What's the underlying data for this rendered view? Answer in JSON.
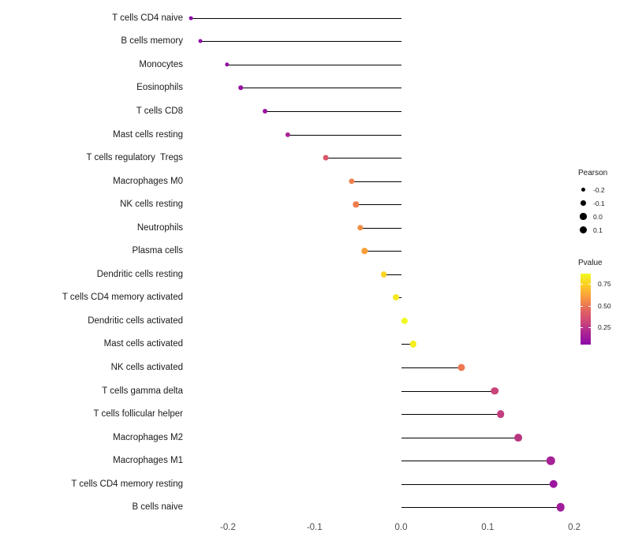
{
  "chart_data": {
    "type": "lollipop",
    "title": "",
    "xlabel": "",
    "ylabel": "",
    "xlim": [
      -0.2446,
      0.24
    ],
    "x_ticks": [
      -0.2,
      -0.1,
      0.0,
      0.1,
      0.2
    ],
    "x_tick_labels": [
      "-0.2",
      "-0.1",
      "0.0",
      "0.1",
      "0.2"
    ],
    "grid": "off",
    "items": [
      {
        "label": "T cells CD4 naive",
        "pearson": -0.243,
        "color": "#8b0aa5"
      },
      {
        "label": "B cells memory",
        "pearson": -0.232,
        "color": "#8e0ca4"
      },
      {
        "label": "Monocytes",
        "pearson": -0.201,
        "color": "#9312a1"
      },
      {
        "label": "Eosinophils",
        "pearson": -0.185,
        "color": "#97139f"
      },
      {
        "label": "T cells CD8",
        "pearson": -0.157,
        "color": "#9c179e"
      },
      {
        "label": "Mast cells resting",
        "pearson": -0.131,
        "color": "#aa2395"
      },
      {
        "label": "T cells regulatory  Tregs",
        "pearson": -0.087,
        "color": "#d9586c"
      },
      {
        "label": "Macrophages M0",
        "pearson": -0.057,
        "color": "#f0804e"
      },
      {
        "label": "NK cells resting",
        "pearson": -0.052,
        "color": "#ef7e4f"
      },
      {
        "label": "Neutrophils",
        "pearson": -0.047,
        "color": "#f28c44"
      },
      {
        "label": "Plasma cells",
        "pearson": -0.042,
        "color": "#fb9e3a"
      },
      {
        "label": "Dendritic cells resting",
        "pearson": -0.02,
        "color": "#fbd524"
      },
      {
        "label": "T cells CD4 memory activated",
        "pearson": -0.006,
        "color": "#f4e823"
      },
      {
        "label": "Dendritic cells activated",
        "pearson": 0.004,
        "color": "#f0f921"
      },
      {
        "label": "Mast cells activated",
        "pearson": 0.014,
        "color": "#f6ed21"
      },
      {
        "label": "NK cells activated",
        "pearson": 0.07,
        "color": "#ec7853"
      },
      {
        "label": "T cells gamma delta",
        "pearson": 0.108,
        "color": "#ca457a"
      },
      {
        "label": "T cells follicular helper",
        "pearson": 0.115,
        "color": "#c43e7f"
      },
      {
        "label": "Macrophages M2",
        "pearson": 0.135,
        "color": "#b93581"
      },
      {
        "label": "Macrophages M1",
        "pearson": 0.173,
        "color": "#a72197"
      },
      {
        "label": "T cells CD4 memory resting",
        "pearson": 0.176,
        "color": "#9c179e"
      },
      {
        "label": "B cells naive",
        "pearson": 0.184,
        "color": "#a11c9b"
      }
    ],
    "legend": {
      "size": {
        "title": "Pearson",
        "entries": [
          {
            "label": "-0.2",
            "value": -0.2
          },
          {
            "label": "-0.1",
            "value": -0.1
          },
          {
            "label": "0.0",
            "value": 0.0
          },
          {
            "label": "0.1",
            "value": 0.1
          }
        ]
      },
      "color": {
        "title": "Pvalue",
        "ticks": [
          "0.75",
          "0.50",
          "0.25"
        ],
        "domain_top": 0.87,
        "domain_bottom": 0.05,
        "gradient_top_color": "#f0f921",
        "gradient_bottom_color": "#8b0aa5"
      }
    }
  }
}
